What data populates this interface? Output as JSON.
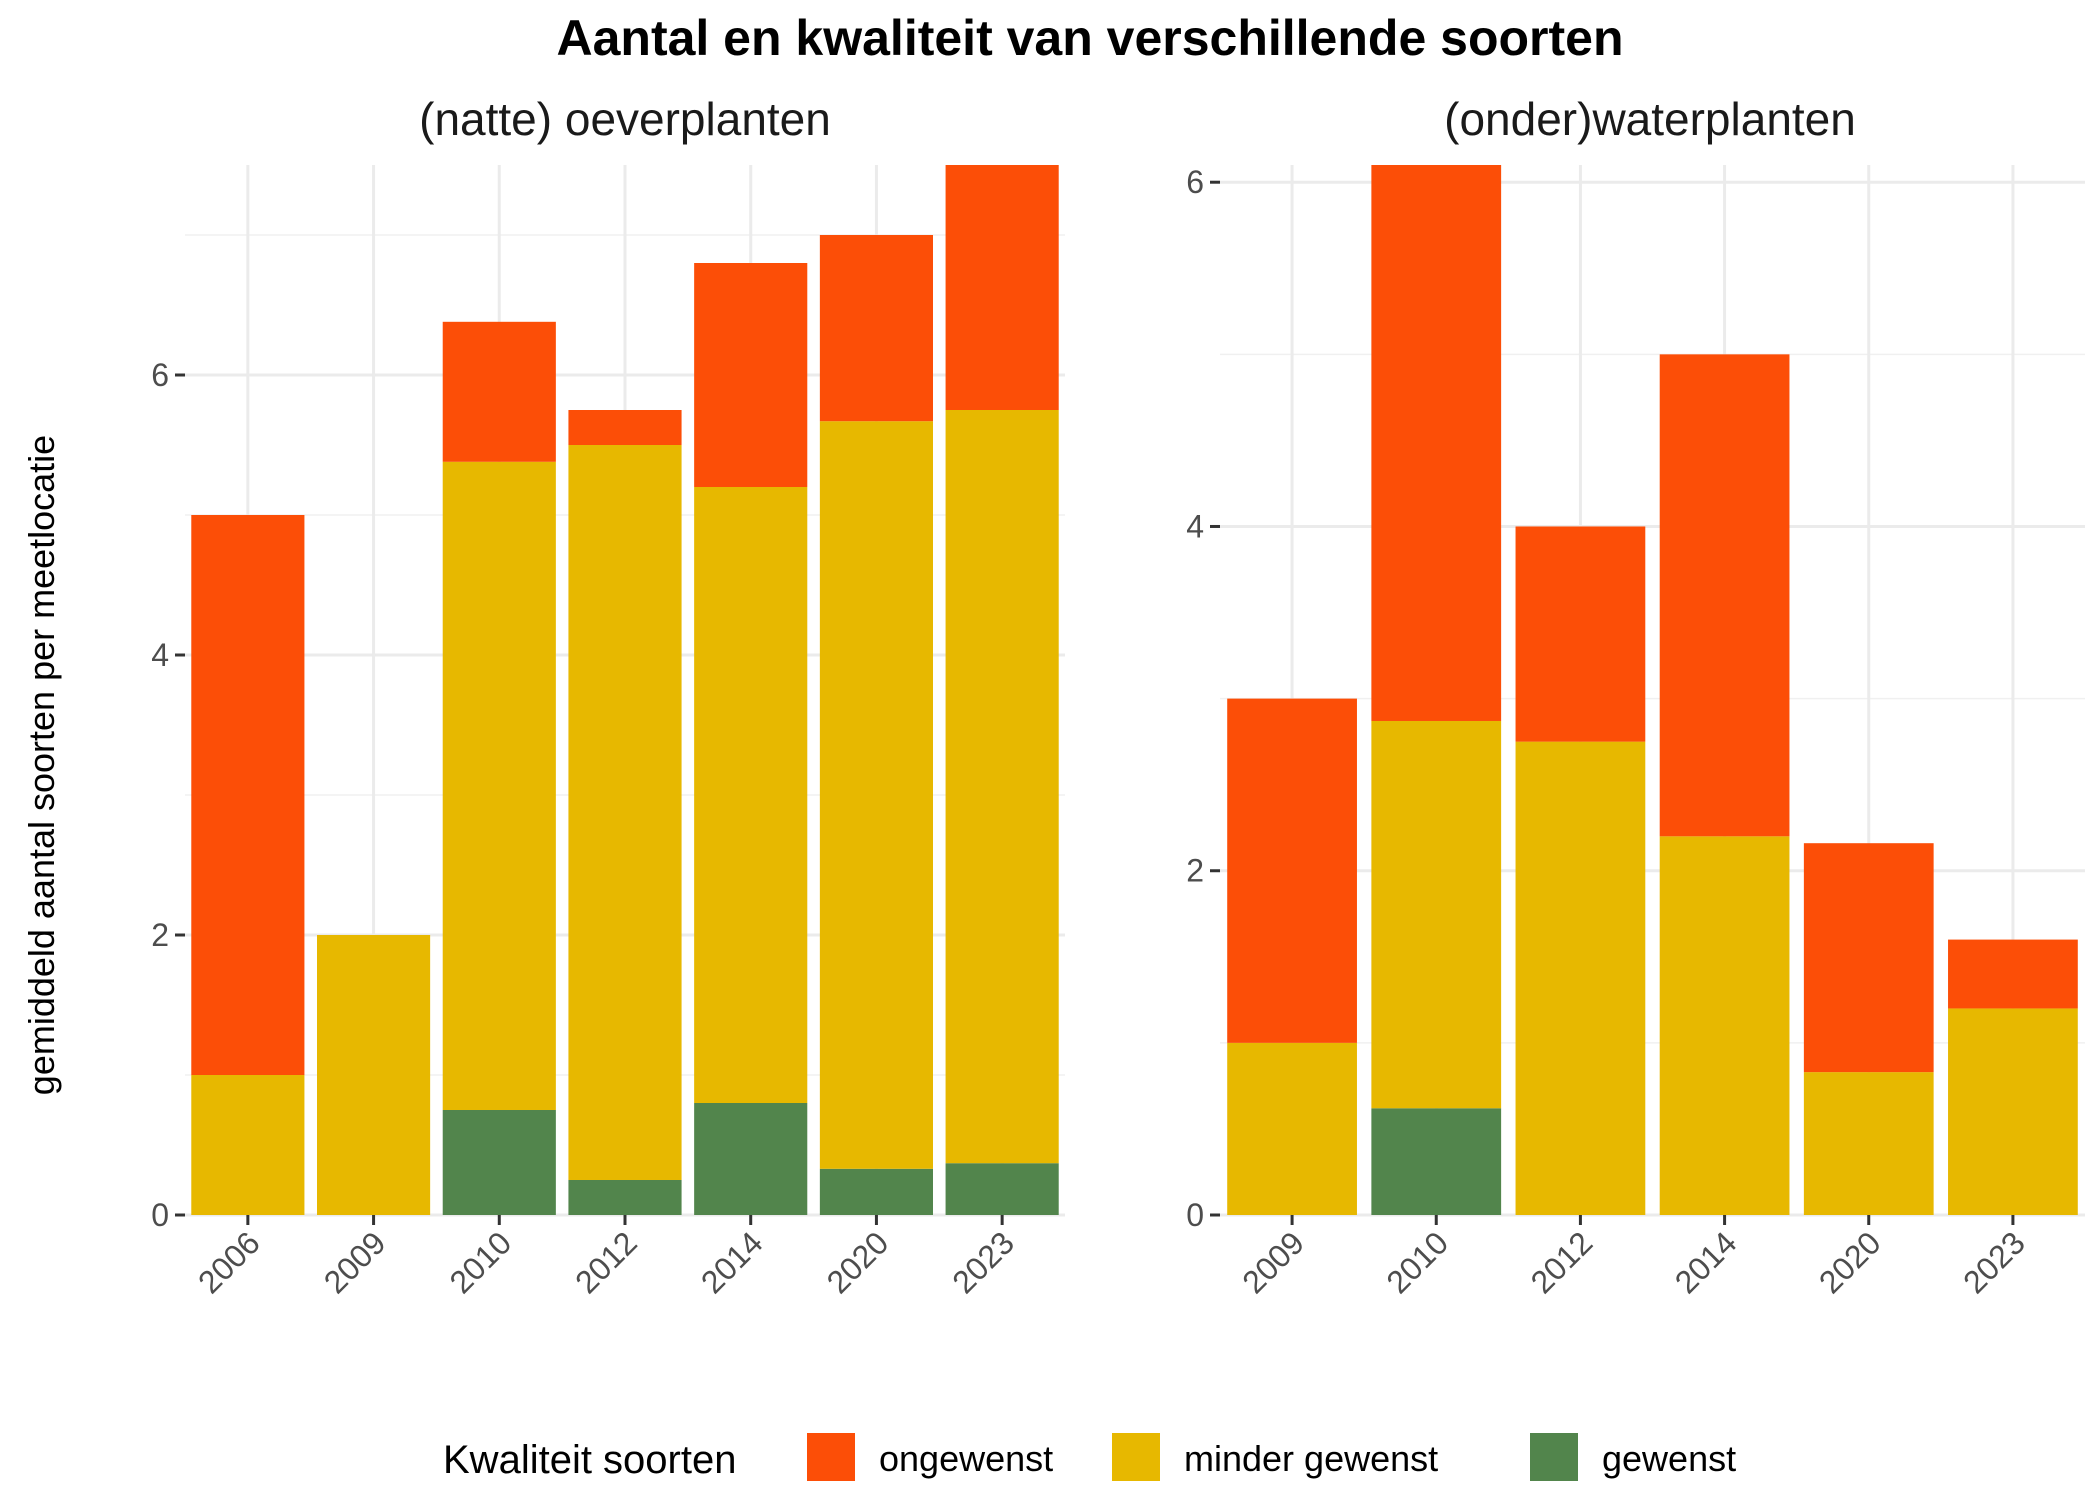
{
  "chart_data": {
    "type": "bar",
    "stacked": true,
    "title": "Aantal en kwaliteit van verschillende soorten",
    "ylabel": "gemiddeld aantal soorten per meetlocatie",
    "grid": true,
    "legend": {
      "title": "Kwaliteit soorten",
      "position": "bottom",
      "entries": [
        {
          "name": "ongewenst",
          "color": "#FC4E07"
        },
        {
          "name": "minder gewenst",
          "color": "#E7B800"
        },
        {
          "name": "gewenst",
          "color": "#52854C"
        }
      ]
    },
    "panels": [
      {
        "title": "(natte) oeverplanten",
        "categories": [
          "2006",
          "2009",
          "2010",
          "2012",
          "2014",
          "2020",
          "2023"
        ],
        "ylim": [
          0,
          7.5
        ],
        "yticks": [
          "0",
          "2",
          "4",
          "6"
        ],
        "series": [
          {
            "name": "gewenst",
            "values": [
              0,
              0,
              0.75,
              0.25,
              0.8,
              0.33,
              0.37
            ]
          },
          {
            "name": "minder gewenst",
            "values": [
              1,
              2,
              4.63,
              5.25,
              4.4,
              5.34,
              5.38
            ]
          },
          {
            "name": "ongewenst",
            "values": [
              4,
              0,
              1.0,
              0.25,
              1.6,
              1.33,
              1.75
            ]
          }
        ]
      },
      {
        "title": "(onder)waterplanten",
        "categories": [
          "2009",
          "2010",
          "2012",
          "2014",
          "2020",
          "2023"
        ],
        "ylim": [
          0,
          6.1
        ],
        "yticks": [
          "0",
          "2",
          "4",
          "6"
        ],
        "series": [
          {
            "name": "gewenst",
            "values": [
              0,
              0.62,
              0,
              0,
              0,
              0
            ]
          },
          {
            "name": "minder gewenst",
            "values": [
              1,
              2.25,
              2.75,
              2.2,
              0.83,
              1.2
            ]
          },
          {
            "name": "ongewenst",
            "values": [
              2,
              3.23,
              1.25,
              2.8,
              1.33,
              0.4
            ]
          }
        ]
      }
    ]
  }
}
